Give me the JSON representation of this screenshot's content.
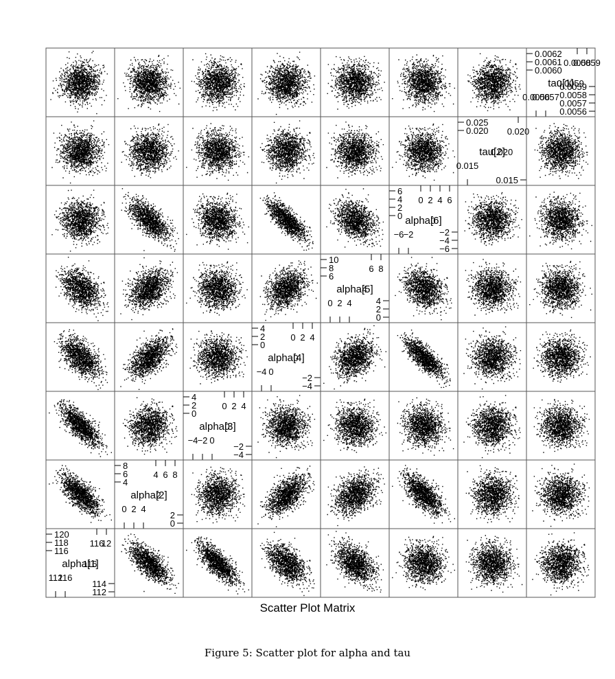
{
  "chart_data": {
    "type": "scatter",
    "title": "",
    "xlabel": "Scatter Plot Matrix",
    "ylabel": "",
    "grid": false,
    "variables": [
      {
        "name": "alpha[1]",
        "ticks_low": [
          "112",
          "116"
        ],
        "ticks_high": [
          "116",
          "12"
        ],
        "ticks_left": [
          "120",
          "118",
          "116"
        ],
        "ticks_right": [
          "114",
          "112"
        ],
        "mid": "116"
      },
      {
        "name": "alpha[2]",
        "ticks_low": [
          "0",
          "2",
          "4"
        ],
        "ticks_high": [
          "4",
          "6",
          "8"
        ],
        "ticks_left": [
          "8",
          "6",
          "4"
        ],
        "ticks_right": [
          "2",
          "0"
        ],
        "mid": "2"
      },
      {
        "name": "alpha[3]",
        "ticks_low": [
          "−4",
          "−2",
          "0"
        ],
        "ticks_high": [
          "0",
          "2",
          "4"
        ],
        "ticks_left": [
          "4",
          "2",
          "0"
        ],
        "ticks_right": [
          "−2",
          "−4"
        ],
        "mid": "0"
      },
      {
        "name": "alpha[4]",
        "ticks_low": [
          "−4",
          "0"
        ],
        "ticks_high": [
          "0",
          "2",
          "4"
        ],
        "ticks_left": [
          "4",
          "2",
          "0"
        ],
        "ticks_right": [
          "−2",
          "−4"
        ],
        "mid": "0"
      },
      {
        "name": "alpha[5]",
        "ticks_low": [
          "0",
          "2",
          "4"
        ],
        "ticks_high": [
          "6",
          "8"
        ],
        "ticks_left": [
          "10",
          "8",
          "6"
        ],
        "ticks_right": [
          "4",
          "2",
          "0"
        ],
        "mid": "4"
      },
      {
        "name": "alpha[6]",
        "ticks_low": [
          "−6",
          "−2"
        ],
        "ticks_high": [
          "0",
          "2",
          "4",
          "6"
        ],
        "ticks_left": [
          "6",
          "4",
          "2",
          "0"
        ],
        "ticks_right": [
          "−2",
          "−4",
          "−6"
        ],
        "mid": "0"
      },
      {
        "name": "tau[2]",
        "ticks_low": [
          "0.015"
        ],
        "ticks_high": [
          "0.020"
        ],
        "ticks_left": [
          "0.025",
          "0.020"
        ],
        "ticks_right": [
          "0.015"
        ],
        "mid": "0.020"
      },
      {
        "name": "tau[1]",
        "ticks_low": [
          "0.0056",
          "0.0057"
        ],
        "ticks_high": [
          "0.0058",
          "0.0059"
        ],
        "ticks_left": [
          "0.0062",
          "0.0061",
          "0.0060"
        ],
        "ticks_right": [
          "0.0059",
          "0.0058",
          "0.0057",
          "0.0056"
        ],
        "mid": "0.0059"
      }
    ],
    "correlation": [
      [
        1.0,
        -0.7,
        -0.75,
        -0.55,
        -0.45,
        -0.05,
        0.0,
        0.0
      ],
      [
        -0.7,
        1.0,
        0.05,
        0.55,
        0.35,
        -0.65,
        0.0,
        0.0
      ],
      [
        -0.75,
        0.05,
        1.0,
        0.0,
        -0.05,
        -0.05,
        0.0,
        0.0
      ],
      [
        -0.55,
        0.55,
        0.0,
        1.0,
        0.35,
        -0.8,
        0.0,
        0.0
      ],
      [
        -0.45,
        0.35,
        -0.05,
        0.35,
        1.0,
        -0.3,
        0.0,
        0.0
      ],
      [
        -0.05,
        -0.65,
        -0.05,
        -0.8,
        -0.3,
        1.0,
        0.0,
        0.0
      ],
      [
        0.0,
        0.0,
        0.0,
        0.0,
        0.0,
        0.0,
        1.0,
        0.0
      ],
      [
        0.0,
        0.0,
        0.0,
        0.0,
        0.0,
        0.0,
        0.0,
        1.0
      ]
    ]
  },
  "figure": {
    "caption": "Figure 5: Scatter plot for alpha and tau"
  }
}
